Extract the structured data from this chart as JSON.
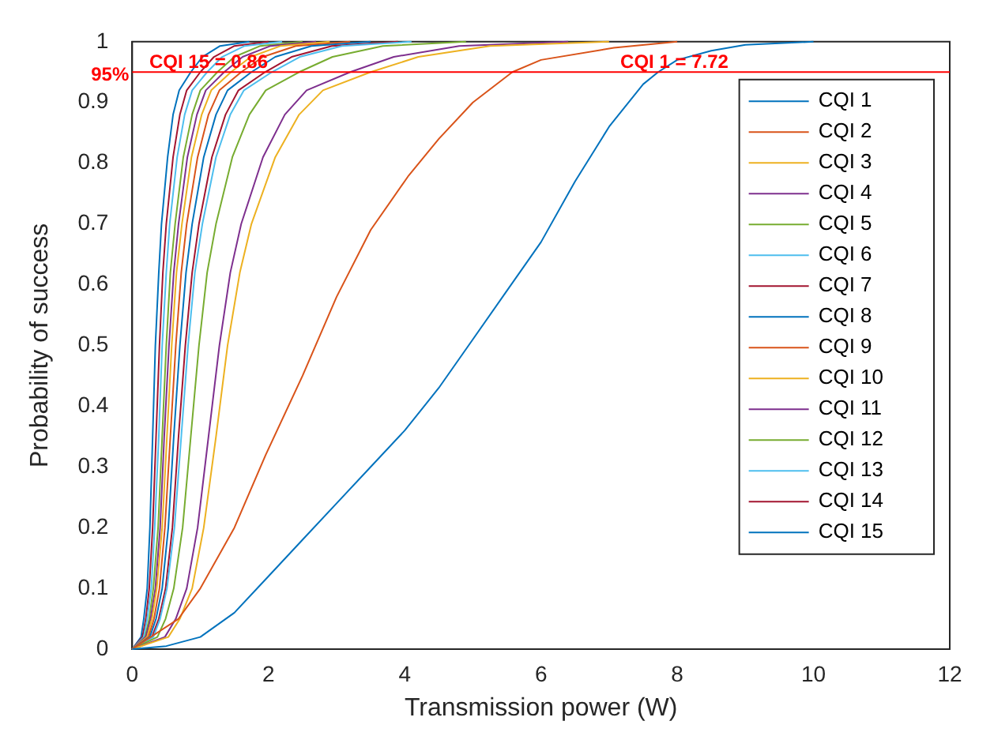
{
  "chart_data": {
    "type": "line",
    "xlabel": "Transmission power (W)",
    "ylabel": "Probability of success",
    "xlim": [
      0,
      12
    ],
    "ylim": [
      0,
      1
    ],
    "xticks": [
      0,
      2,
      4,
      6,
      8,
      10,
      12
    ],
    "yticks": [
      0,
      0.1,
      0.2,
      0.3,
      0.4,
      0.5,
      0.6,
      0.7,
      0.8,
      0.9,
      1
    ],
    "grid": false,
    "legend": "top right",
    "marker": "none",
    "line_style": "solid",
    "ref_lines": [
      {
        "axis": "y",
        "value": 0.95,
        "color": "#ff0000",
        "label": "95%"
      }
    ],
    "annotations": [
      {
        "text": "CQI 15 = 0.86",
        "x": 0.86,
        "y": 0.95
      },
      {
        "text": "CQI 1 = 7.72",
        "x": 7.72,
        "y": 0.95
      }
    ],
    "series": [
      {
        "name": "CQI 1",
        "color": "#0072bd",
        "x": [
          0,
          0.5,
          1,
          1.5,
          2,
          2.5,
          3,
          3.5,
          4,
          4.5,
          5,
          5.5,
          6,
          6.5,
          7,
          7.5,
          7.72,
          8,
          8.5,
          9,
          10
        ],
        "values": [
          0,
          0.005,
          0.02,
          0.06,
          0.12,
          0.18,
          0.24,
          0.3,
          0.36,
          0.43,
          0.51,
          0.59,
          0.67,
          0.77,
          0.86,
          0.93,
          0.95,
          0.97,
          0.985,
          0.995,
          1
        ]
      },
      {
        "name": "CQI 2",
        "color": "#d95319",
        "x": [
          0,
          0.68,
          1,
          1.5,
          1.96,
          2.5,
          3,
          3.5,
          4.06,
          4.5,
          5,
          5.58,
          6,
          7.07,
          8
        ],
        "values": [
          0,
          0.05,
          0.1,
          0.2,
          0.32,
          0.45,
          0.58,
          0.69,
          0.78,
          0.84,
          0.9,
          0.95,
          0.97,
          0.99,
          1
        ]
      },
      {
        "name": "CQI 3",
        "color": "#edb120",
        "x": [
          0,
          0.53,
          0.7,
          0.88,
          1.05,
          1.23,
          1.4,
          1.58,
          1.75,
          2.1,
          2.45,
          2.8,
          3.5,
          4.2,
          5.25,
          7
        ],
        "values": [
          0,
          0.02,
          0.05,
          0.1,
          0.2,
          0.35,
          0.5,
          0.62,
          0.7,
          0.81,
          0.88,
          0.92,
          0.95,
          0.975,
          0.993,
          1
        ]
      },
      {
        "name": "CQI 4",
        "color": "#7e2f8e",
        "x": [
          0,
          0.48,
          0.64,
          0.8,
          0.96,
          1.12,
          1.28,
          1.44,
          1.6,
          1.92,
          2.24,
          2.56,
          3.2,
          3.84,
          4.8,
          6.4
        ],
        "values": [
          0,
          0.02,
          0.05,
          0.1,
          0.2,
          0.35,
          0.5,
          0.62,
          0.7,
          0.81,
          0.88,
          0.92,
          0.95,
          0.975,
          0.993,
          1
        ]
      },
      {
        "name": "CQI 5",
        "color": "#77ac30",
        "x": [
          0,
          0.37,
          0.49,
          0.61,
          0.74,
          0.86,
          0.98,
          1.1,
          1.23,
          1.47,
          1.72,
          1.96,
          2.45,
          2.94,
          3.68,
          4.9
        ],
        "values": [
          0,
          0.02,
          0.05,
          0.1,
          0.2,
          0.35,
          0.5,
          0.62,
          0.7,
          0.81,
          0.88,
          0.92,
          0.95,
          0.975,
          0.993,
          1
        ]
      },
      {
        "name": "CQI 6",
        "color": "#4dbeee",
        "x": [
          0,
          0.31,
          0.41,
          0.51,
          0.62,
          0.72,
          0.82,
          0.92,
          1.03,
          1.23,
          1.44,
          1.64,
          2.05,
          2.46,
          3.08,
          4.1
        ],
        "values": [
          0,
          0.02,
          0.05,
          0.1,
          0.2,
          0.35,
          0.5,
          0.62,
          0.7,
          0.81,
          0.88,
          0.92,
          0.95,
          0.975,
          0.993,
          1
        ]
      },
      {
        "name": "CQI 7",
        "color": "#a2142f",
        "x": [
          0,
          0.29,
          0.39,
          0.49,
          0.59,
          0.68,
          0.78,
          0.88,
          0.98,
          1.17,
          1.37,
          1.56,
          1.95,
          2.34,
          2.93,
          3.9
        ],
        "values": [
          0,
          0.02,
          0.05,
          0.1,
          0.2,
          0.35,
          0.5,
          0.62,
          0.7,
          0.81,
          0.88,
          0.92,
          0.95,
          0.975,
          0.993,
          1
        ]
      },
      {
        "name": "CQI 8",
        "color": "#0072bd",
        "x": [
          0,
          0.26,
          0.35,
          0.44,
          0.53,
          0.61,
          0.7,
          0.79,
          0.88,
          1.05,
          1.23,
          1.4,
          1.75,
          2.1,
          2.63,
          3.5
        ],
        "values": [
          0,
          0.02,
          0.05,
          0.1,
          0.2,
          0.35,
          0.5,
          0.62,
          0.7,
          0.81,
          0.88,
          0.92,
          0.95,
          0.975,
          0.993,
          1
        ]
      },
      {
        "name": "CQI 9",
        "color": "#d95319",
        "x": [
          0,
          0.24,
          0.32,
          0.4,
          0.48,
          0.56,
          0.64,
          0.72,
          0.8,
          0.96,
          1.12,
          1.28,
          1.6,
          1.92,
          2.4,
          3.2
        ],
        "values": [
          0,
          0.02,
          0.05,
          0.1,
          0.2,
          0.35,
          0.5,
          0.62,
          0.7,
          0.81,
          0.88,
          0.92,
          0.95,
          0.975,
          0.993,
          1
        ]
      },
      {
        "name": "CQI 10",
        "color": "#edb120",
        "x": [
          0,
          0.22,
          0.29,
          0.36,
          0.44,
          0.51,
          0.58,
          0.65,
          0.73,
          0.87,
          1.02,
          1.16,
          1.45,
          1.74,
          2.18,
          2.9
        ],
        "values": [
          0,
          0.02,
          0.05,
          0.1,
          0.2,
          0.35,
          0.5,
          0.62,
          0.7,
          0.81,
          0.88,
          0.92,
          0.95,
          0.975,
          0.993,
          1
        ]
      },
      {
        "name": "CQI 11",
        "color": "#7e2f8e",
        "x": [
          0,
          0.2,
          0.27,
          0.34,
          0.41,
          0.47,
          0.54,
          0.61,
          0.68,
          0.81,
          0.95,
          1.08,
          1.35,
          1.62,
          2.03,
          2.7
        ],
        "values": [
          0,
          0.02,
          0.05,
          0.1,
          0.2,
          0.35,
          0.5,
          0.62,
          0.7,
          0.81,
          0.88,
          0.92,
          0.95,
          0.975,
          0.993,
          1
        ]
      },
      {
        "name": "CQI 12",
        "color": "#77ac30",
        "x": [
          0,
          0.19,
          0.25,
          0.31,
          0.38,
          0.44,
          0.5,
          0.56,
          0.63,
          0.75,
          0.88,
          1,
          1.25,
          1.5,
          1.88,
          2.5
        ],
        "values": [
          0,
          0.02,
          0.05,
          0.1,
          0.2,
          0.35,
          0.5,
          0.62,
          0.7,
          0.81,
          0.88,
          0.92,
          0.95,
          0.975,
          0.993,
          1
        ]
      },
      {
        "name": "CQI 13",
        "color": "#4dbeee",
        "x": [
          0,
          0.17,
          0.22,
          0.28,
          0.33,
          0.39,
          0.44,
          0.5,
          0.55,
          0.66,
          0.77,
          0.88,
          1.1,
          1.32,
          1.65,
          2.2
        ],
        "values": [
          0,
          0.02,
          0.05,
          0.1,
          0.2,
          0.35,
          0.5,
          0.62,
          0.7,
          0.81,
          0.88,
          0.92,
          0.95,
          0.975,
          0.993,
          1
        ]
      },
      {
        "name": "CQI 14",
        "color": "#a2142f",
        "x": [
          0,
          0.15,
          0.2,
          0.25,
          0.3,
          0.35,
          0.4,
          0.45,
          0.5,
          0.6,
          0.7,
          0.8,
          1,
          1.2,
          1.5,
          2
        ],
        "values": [
          0,
          0.02,
          0.05,
          0.1,
          0.2,
          0.35,
          0.5,
          0.62,
          0.7,
          0.81,
          0.88,
          0.92,
          0.95,
          0.975,
          0.993,
          1
        ]
      },
      {
        "name": "CQI 15",
        "color": "#0072bd",
        "x": [
          0,
          0.13,
          0.17,
          0.22,
          0.26,
          0.3,
          0.34,
          0.39,
          0.43,
          0.52,
          0.6,
          0.69,
          0.86,
          1.03,
          1.29,
          1.72
        ],
        "values": [
          0,
          0.02,
          0.05,
          0.1,
          0.2,
          0.35,
          0.5,
          0.62,
          0.7,
          0.81,
          0.88,
          0.92,
          0.95,
          0.975,
          0.993,
          1
        ]
      }
    ]
  }
}
